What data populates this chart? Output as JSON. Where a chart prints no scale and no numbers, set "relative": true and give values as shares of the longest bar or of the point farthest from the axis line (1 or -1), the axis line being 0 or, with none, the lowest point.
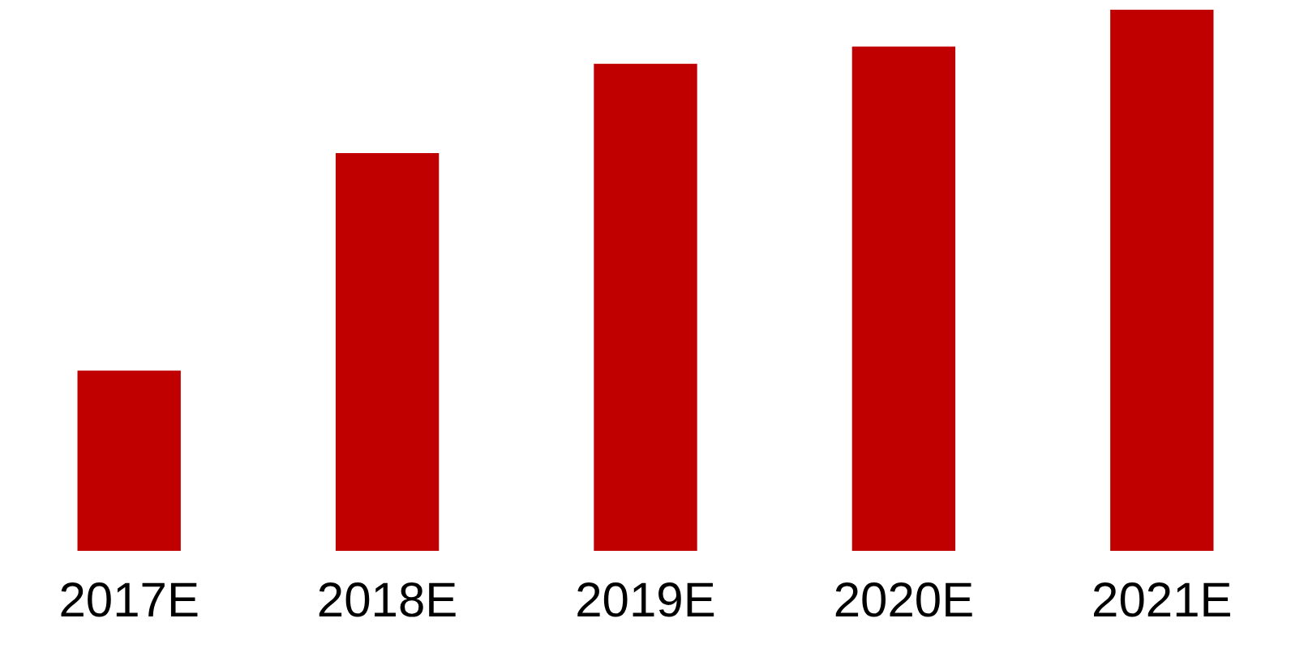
{
  "chart_data": {
    "type": "bar",
    "relative": true,
    "categories": [
      "2017E",
      "2018E",
      "2019E",
      "2020E",
      "2021E"
    ],
    "values": [
      0.333,
      0.735,
      0.9,
      0.932,
      1
    ],
    "color": "#c00000",
    "grid": false,
    "legend": false
  }
}
